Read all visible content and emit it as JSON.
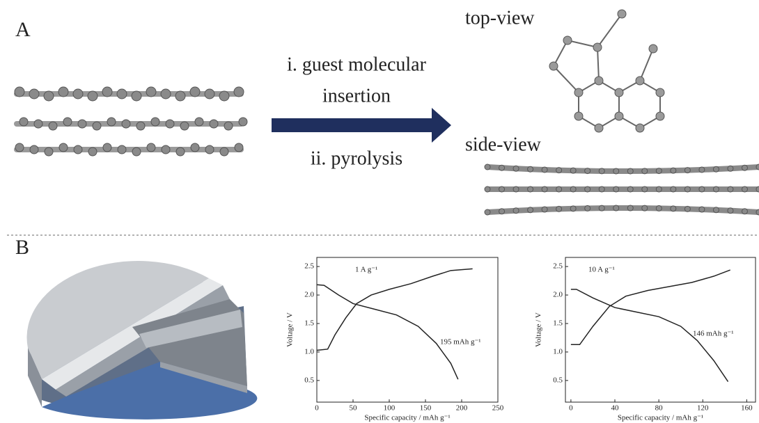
{
  "panel_a": {
    "label": "A",
    "step_1": [
      "i. guest molecular",
      "insertion"
    ],
    "step_2": "ii. pyrolysis",
    "top_view": "top-view",
    "side_view": "side-view"
  },
  "panel_b": {
    "label": "B"
  },
  "chart_data": [
    {
      "type": "line",
      "annotation": "1 A g⁻¹",
      "capacity_label": "195 mAh g⁻¹",
      "x_label": "Specific capacity / mAh g⁻¹",
      "y_label": "Voltage / V",
      "xlim": [
        0,
        250
      ],
      "ylim": [
        0.12,
        2.66
      ],
      "xticks": [
        0,
        50,
        100,
        150,
        200,
        250
      ],
      "yticks": [
        0.5,
        {
          "value": 1,
          "label": "1.0"
        },
        1.5,
        {
          "value": 2,
          "label": "2.0"
        },
        2.5
      ],
      "series": [
        {
          "color": "#222222",
          "x": [
            0,
            15,
            25,
            40,
            55,
            75,
            100,
            130,
            160,
            185,
            215
          ],
          "values": [
            1.03,
            1.05,
            1.3,
            1.6,
            1.85,
            2.0,
            2.1,
            2.2,
            2.33,
            2.43,
            2.46
          ]
        },
        {
          "color": "#222222",
          "x": [
            0,
            10,
            30,
            50,
            80,
            110,
            140,
            165,
            185,
            195
          ],
          "values": [
            2.18,
            2.17,
            2.0,
            1.85,
            1.75,
            1.65,
            1.45,
            1.15,
            0.8,
            0.52
          ]
        }
      ]
    },
    {
      "type": "line",
      "annotation": "10 A g⁻¹",
      "capacity_label": "146 mAh g⁻¹",
      "x_label": "Specific capacity / mAh g⁻¹",
      "y_label": "Voltage / V",
      "xlim": [
        -5,
        168
      ],
      "ylim": [
        0.12,
        2.66
      ],
      "xticks": [
        0,
        40,
        80,
        120,
        160
      ],
      "yticks": [
        0.5,
        {
          "value": 1,
          "label": "1.0"
        },
        1.5,
        {
          "value": 2,
          "label": "2.0"
        },
        2.5
      ],
      "series": [
        {
          "color": "#222222",
          "x": [
            0,
            8,
            20,
            35,
            50,
            70,
            90,
            110,
            130,
            145
          ],
          "values": [
            1.13,
            1.13,
            1.45,
            1.8,
            1.98,
            2.08,
            2.15,
            2.22,
            2.33,
            2.44
          ]
        },
        {
          "color": "#222222",
          "x": [
            0,
            5,
            20,
            40,
            60,
            80,
            100,
            115,
            130,
            143
          ],
          "values": [
            2.1,
            2.1,
            1.95,
            1.78,
            1.7,
            1.62,
            1.45,
            1.2,
            0.85,
            0.48
          ]
        }
      ]
    }
  ]
}
